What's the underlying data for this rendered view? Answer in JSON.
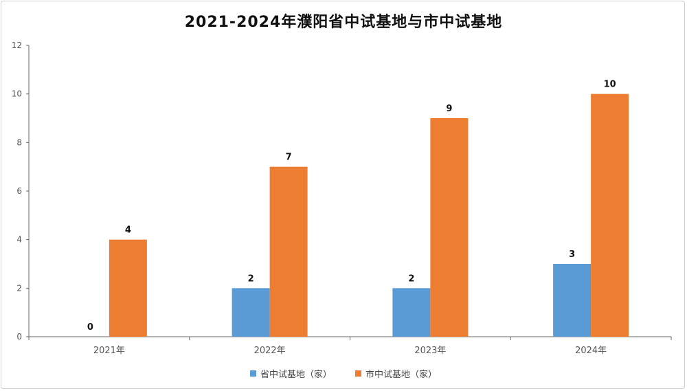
{
  "chart_data": {
    "type": "bar",
    "title": "2021-2024年濮阳省中试基地与市中试基地",
    "categories": [
      "2021年",
      "2022年",
      "2023年",
      "2024年"
    ],
    "series": [
      {
        "name": "省中试基地（家）",
        "values": [
          0,
          2,
          2,
          3
        ],
        "color": "#5b9bd5"
      },
      {
        "name": "市中试基地（家）",
        "values": [
          4,
          7,
          9,
          10
        ],
        "color": "#ed7d31"
      }
    ],
    "ylim": [
      0,
      12
    ],
    "yticks": [
      0,
      2,
      4,
      6,
      8,
      10,
      12
    ],
    "grid": false,
    "legend_position": "bottom"
  }
}
